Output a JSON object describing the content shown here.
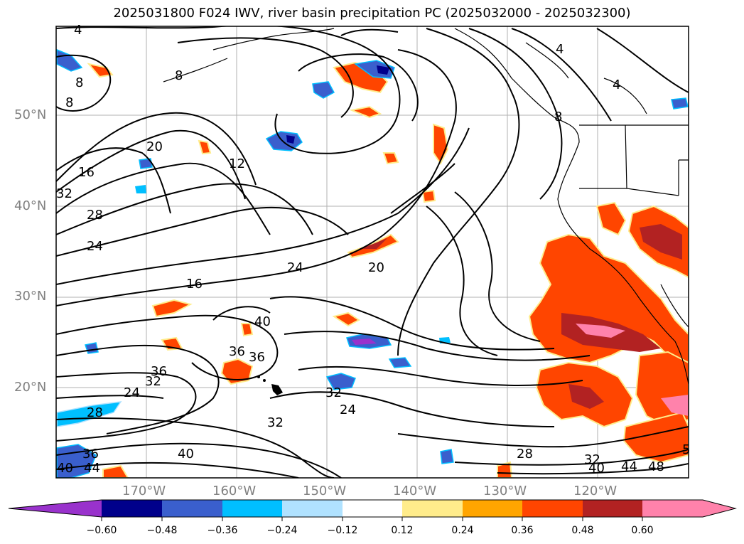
{
  "title": "2025031800 F024 IWV, river basin precipitation PC (2025032000 - 2025032300)",
  "map": {
    "lat_labels": [
      "50°N",
      "40°N",
      "30°N",
      "20°N"
    ],
    "lon_labels": [
      "170°W",
      "160°W",
      "150°W",
      "140°W",
      "130°W",
      "120°W"
    ],
    "contour_labels": [
      {
        "text": "4"
      },
      {
        "text": "8"
      },
      {
        "text": "8"
      },
      {
        "text": "8"
      },
      {
        "text": "4"
      },
      {
        "text": "4"
      },
      {
        "text": "8"
      },
      {
        "text": "20"
      },
      {
        "text": "16"
      },
      {
        "text": "12"
      },
      {
        "text": "32"
      },
      {
        "text": "28"
      },
      {
        "text": "24"
      },
      {
        "text": "16"
      },
      {
        "text": "24"
      },
      {
        "text": "20"
      },
      {
        "text": "40"
      },
      {
        "text": "36"
      },
      {
        "text": "36"
      },
      {
        "text": "36"
      },
      {
        "text": "32"
      },
      {
        "text": "24"
      },
      {
        "text": "28"
      },
      {
        "text": "32"
      },
      {
        "text": "24"
      },
      {
        "text": "32"
      },
      {
        "text": "36"
      },
      {
        "text": "40"
      },
      {
        "text": "40"
      },
      {
        "text": "44"
      },
      {
        "text": "28"
      },
      {
        "text": "32"
      },
      {
        "text": "40"
      },
      {
        "text": "44"
      },
      {
        "text": "48"
      },
      {
        "text": "5"
      }
    ]
  },
  "colorbar": {
    "colors": [
      "#9932cc",
      "#00008b",
      "#3a5fcd",
      "#00bfff",
      "#b0e2ff",
      "#ffffff",
      "#ffec8b",
      "#ffa500",
      "#ff4500",
      "#b22222",
      "#ff82ab",
      "#ff82ab"
    ],
    "ticks": [
      "−0.60",
      "−0.48",
      "−0.36",
      "−0.24",
      "−0.12",
      "0.12",
      "0.24",
      "0.36",
      "0.48",
      "0.60"
    ]
  }
}
